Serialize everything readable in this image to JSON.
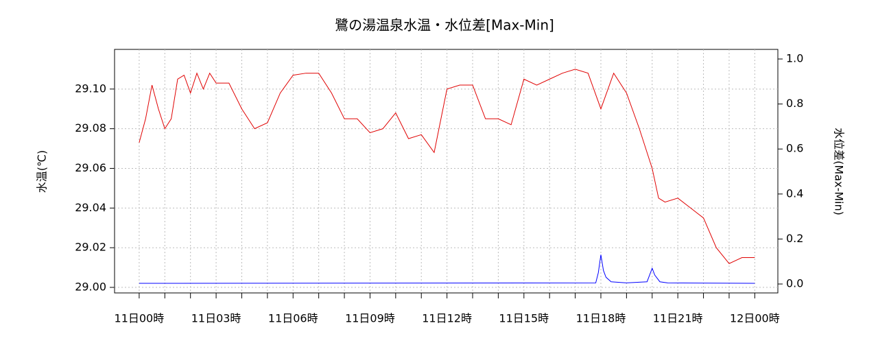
{
  "chart_data": {
    "type": "line",
    "title": "鷺の湯温泉水温・水位差[Max-Min]",
    "y_label": "水温(℃)",
    "y2_label": "水位差(Max-Min)",
    "xlim": [
      -0.96,
      24.9
    ],
    "xticks": [
      {
        "value": 0,
        "label": "11日00時"
      },
      {
        "value": 3,
        "label": "11日03時"
      },
      {
        "value": 6,
        "label": "11日06時"
      },
      {
        "value": 9,
        "label": "11日09時"
      },
      {
        "value": 12,
        "label": "11日12時"
      },
      {
        "value": 15,
        "label": "11日15時"
      },
      {
        "value": 18,
        "label": "11日18時"
      },
      {
        "value": 21,
        "label": "11日21時"
      },
      {
        "value": 24,
        "label": "12日00時"
      }
    ],
    "xminor_ticks": [
      1,
      2,
      4,
      5,
      7,
      8,
      10,
      11,
      13,
      14,
      16,
      17,
      19,
      20,
      22,
      23
    ],
    "ylim": [
      28.9972,
      29.12
    ],
    "yticks": [
      {
        "value": 29.0,
        "label": "29.00"
      },
      {
        "value": 29.02,
        "label": "29.02"
      },
      {
        "value": 29.04,
        "label": "29.04"
      },
      {
        "value": 29.06,
        "label": "29.06"
      },
      {
        "value": 29.08,
        "label": "29.08"
      },
      {
        "value": 29.1,
        "label": "29.10"
      }
    ],
    "y2lim": [
      -0.0396,
      1.0427
    ],
    "y2ticks": [
      {
        "value": 0,
        "label": "0.0"
      },
      0.2,
      0.4,
      0.6,
      0.8,
      {
        "value": 1,
        "label": "1.0"
      }
    ],
    "grid": true,
    "series": [
      {
        "name": "水温",
        "color": "#e00000",
        "x": [
          0,
          0.25,
          0.5,
          0.75,
          1,
          1.25,
          1.5,
          1.75,
          2,
          2.25,
          2.5,
          2.75,
          3,
          3.5,
          4,
          4.5,
          5,
          5.5,
          6,
          6.5,
          7,
          7.5,
          8,
          8.5,
          9,
          9.5,
          10,
          10.5,
          11,
          11.5,
          12,
          12.5,
          13,
          13.5,
          14,
          14.5,
          15,
          15.5,
          16,
          16.5,
          17,
          17.5,
          18,
          18.5,
          19,
          19.5,
          20,
          20.25,
          20.5,
          21,
          21.5,
          22,
          22.5,
          23,
          23.5,
          24
        ],
        "values": [
          29.073,
          29.085,
          29.102,
          29.09,
          29.08,
          29.085,
          29.105,
          29.107,
          29.098,
          29.108,
          29.1,
          29.108,
          29.103,
          29.103,
          29.09,
          29.08,
          29.083,
          29.098,
          29.107,
          29.108,
          29.108,
          29.098,
          29.085,
          29.085,
          29.078,
          29.08,
          29.088,
          29.075,
          29.077,
          29.068,
          29.1,
          29.102,
          29.102,
          29.085,
          29.085,
          29.082,
          29.105,
          29.102,
          29.105,
          29.108,
          29.11,
          29.108,
          29.09,
          29.108,
          29.098,
          29.08,
          29.06,
          29.045,
          29.043,
          29.045,
          29.04,
          29.035,
          29.02,
          29.012,
          29.015,
          29.015
        ]
      },
      {
        "name": "水位差",
        "color": "#0000ff",
        "axis": "y2",
        "x": [
          0,
          17.8,
          17.9,
          18,
          18.1,
          18.2,
          18.4,
          19,
          19.8,
          19.9,
          20,
          20.1,
          20.3,
          20.6,
          24
        ],
        "values": [
          0.003,
          0.005,
          0.05,
          0.13,
          0.06,
          0.03,
          0.01,
          0.005,
          0.01,
          0.04,
          0.07,
          0.04,
          0.01,
          0.005,
          0.003
        ]
      }
    ]
  }
}
